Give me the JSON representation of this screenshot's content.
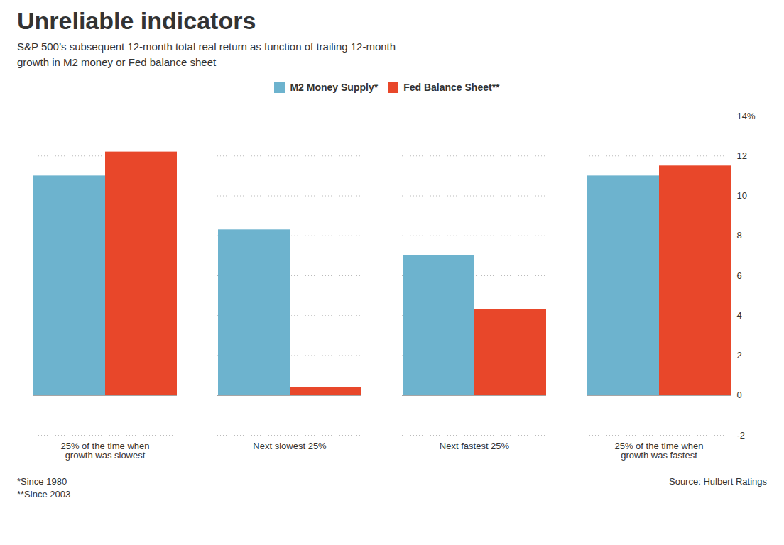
{
  "chart_data": {
    "type": "bar",
    "title": "Unreliable indicators",
    "subtitle": "S&P 500’s subsequent 12-month total real return as function of trailing 12-month\ngrowth in M2 money or Fed balance sheet",
    "categories": [
      "25% of the time when\ngrowth was slowest",
      "Next slowest 25%",
      "Next fastest 25%",
      "25% of the time when\ngrowth was fastest"
    ],
    "series": [
      {
        "name": "M2 Money Supply*",
        "color": "#6DB3CE",
        "values": [
          11.0,
          8.3,
          7.0,
          11.0
        ]
      },
      {
        "name": "Fed Balance Sheet**",
        "color": "#E8472A",
        "values": [
          12.2,
          0.4,
          4.3,
          11.5
        ]
      }
    ],
    "ylim": [
      -2,
      14
    ],
    "yticks": [
      -2,
      0,
      2,
      4,
      6,
      8,
      10,
      12,
      {
        "value": 14,
        "label": "14%"
      }
    ],
    "grid": true,
    "legend": "upper center",
    "footnotes": [
      "*Since 1980",
      "**Since 2003"
    ],
    "source": "Source: Hulbert Ratings"
  }
}
